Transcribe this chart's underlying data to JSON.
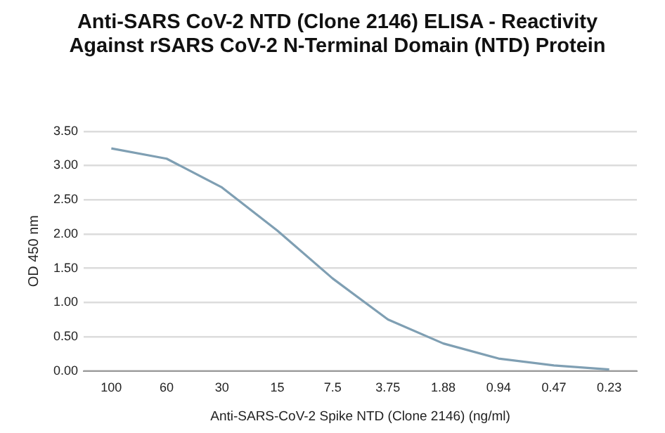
{
  "chart_data": {
    "type": "line",
    "title": "Anti-SARS CoV-2 NTD (Clone 2146) ELISA - Reactivity Against rSARS CoV-2 N-Terminal Domain (NTD) Protein",
    "xlabel": "Anti-SARS-CoV-2 Spike NTD (Clone 2146) (ng/ml)",
    "ylabel": "OD 450 nm",
    "categories": [
      "100",
      "60",
      "30",
      "15",
      "7.5",
      "3.75",
      "1.88",
      "0.94",
      "0.47",
      "0.23"
    ],
    "series": [
      {
        "color": "#7f9fb3",
        "values": [
          3.25,
          3.1,
          2.68,
          2.05,
          1.35,
          0.75,
          0.4,
          0.18,
          0.08,
          0.02
        ]
      }
    ],
    "ylim": [
      0,
      3.5
    ],
    "yticks": [
      {
        "value": 0,
        "label": "0.00"
      },
      {
        "value": 0.5,
        "label": "0.50"
      },
      {
        "value": 1,
        "label": "1.00"
      },
      {
        "value": 1.5,
        "label": "1.50"
      },
      {
        "value": 2,
        "label": "2.00"
      },
      {
        "value": 2.5,
        "label": "2.50"
      },
      {
        "value": 3,
        "label": "3.00"
      },
      {
        "value": 3.5,
        "label": "3.50"
      }
    ],
    "grid": "y",
    "marker": "none",
    "legend": false
  }
}
